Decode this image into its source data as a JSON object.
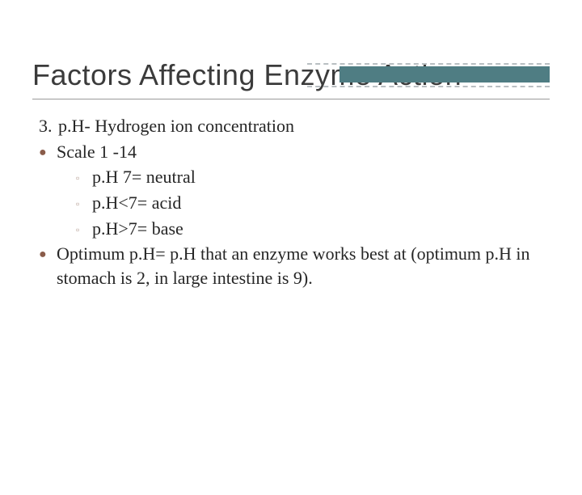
{
  "colors": {
    "decor_bar": "#4f7d83",
    "decor_dash": "#b9bfc2",
    "title_rule": "#9a9a9a",
    "bullet_primary": "#8a5c4a",
    "bullet_secondary": "#b39a8f",
    "text": "#262626",
    "background": "#ffffff"
  },
  "typography": {
    "title_font": "Verdana",
    "body_font": "Georgia",
    "title_fontsize": 36,
    "body_fontsize": 22
  },
  "title": "Factors Affecting Enzyme Action",
  "items": [
    {
      "marker": "3.",
      "text": "p.H- Hydrogen ion concentration"
    },
    {
      "marker": "dot",
      "text": "Scale 1 -14"
    }
  ],
  "subitems": [
    "p.H 7= neutral",
    "p.H<7= acid",
    "p.H>7= base"
  ],
  "tail": {
    "marker": "dot",
    "text": "Optimum p.H= p.H that an enzyme works best at (optimum p.H in stomach is 2, in large intestine is 9)."
  }
}
